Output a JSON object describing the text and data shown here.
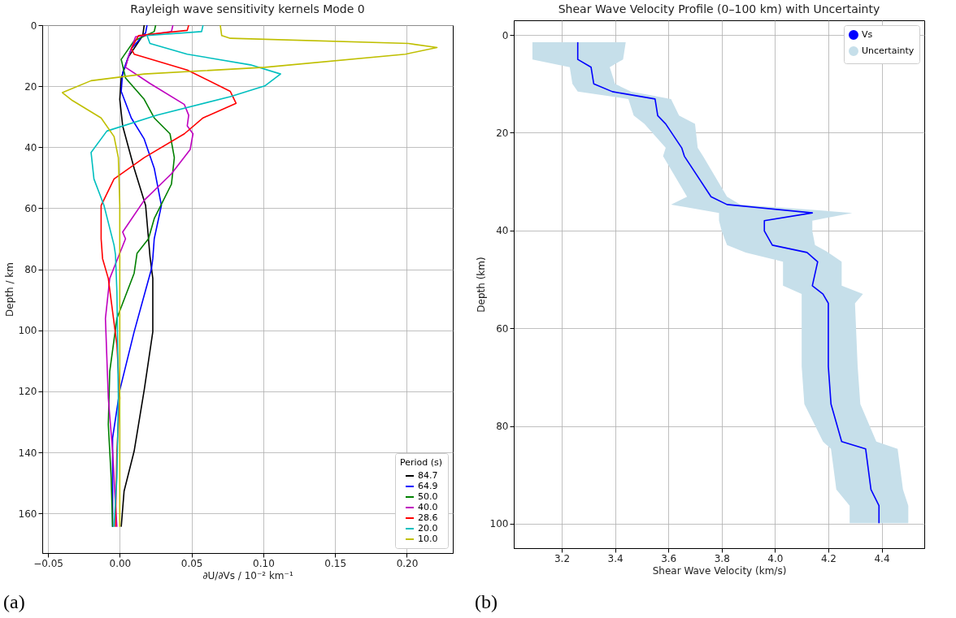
{
  "chart_data": [
    {
      "type": "line",
      "title": "Rayleigh wave sensitivity kernels Mode 0",
      "xlabel": "∂U/∂Vs / 10⁻² km⁻¹",
      "ylabel": "Depth / km",
      "orientation": "horizontal",
      "legend_title": "Period (s)",
      "legend": "bottom right",
      "grid": true,
      "xlim": [
        -0.054,
        0.232
      ],
      "xticks": [
        {
          "value": -0.05,
          "label": "−0.05"
        },
        {
          "value": 0,
          "label": "0.00"
        },
        {
          "value": 0.05,
          "label": "0.05"
        },
        {
          "value": 0.1,
          "label": "0.10"
        },
        {
          "value": 0.15,
          "label": "0.15"
        },
        {
          "value": 0.2,
          "label": "0.20"
        }
      ],
      "ylim": [
        173,
        0
      ],
      "yticks": [
        0,
        20,
        40,
        60,
        80,
        100,
        120,
        140,
        160
      ],
      "annotations": [
        "(a)"
      ],
      "series": [
        {
          "name": "84.7",
          "color": "#000000",
          "x": [
            0,
            3.4,
            10.4,
            17.3,
            24.3,
            33,
            46.9,
            59.1,
            70,
            75.6,
            83,
            100.5,
            119.6,
            139.6,
            152.7,
            164.4
          ],
          "values": [
            0.017,
            0.016,
            0.006,
            0.001,
            0.0,
            0.002,
            0.01,
            0.018,
            0.02,
            0.021,
            0.023,
            0.023,
            0.017,
            0.01,
            0.003,
            0.001
          ]
        },
        {
          "name": "64.9",
          "color": "#0000ff",
          "x": [
            0,
            2.5,
            7.7,
            15.6,
            21.7,
            30.4,
            37.3,
            46.9,
            59.1,
            70,
            76.5,
            80,
            100.5,
            119.6,
            135.3,
            157,
            164.4
          ],
          "values": [
            0.019,
            0.018,
            0.008,
            0.002,
            0.001,
            0.008,
            0.017,
            0.024,
            0.029,
            0.024,
            0.023,
            0.022,
            0.01,
            0.0,
            -0.005,
            -0.005,
            -0.005
          ]
        },
        {
          "name": "50.0",
          "color": "#008000",
          "x": [
            0,
            2.1,
            5.1,
            11.2,
            17.3,
            24.3,
            30.4,
            35.6,
            43.4,
            52.1,
            63.4,
            70,
            74.8,
            81.3,
            96.1,
            113.5,
            130.9,
            148.3,
            164.4
          ],
          "values": [
            0.025,
            0.024,
            0.01,
            0.001,
            0.004,
            0.017,
            0.024,
            0.035,
            0.038,
            0.036,
            0.024,
            0.02,
            0.012,
            0.01,
            -0.002,
            -0.007,
            -0.008,
            -0.006,
            -0.005
          ]
        },
        {
          "name": "40.0",
          "color": "#bf00bf",
          "x": [
            0,
            2.1,
            3.8,
            10.4,
            13.8,
            19.1,
            26,
            29.5,
            33,
            35.6,
            40.8,
            48.7,
            57.4,
            67.8,
            70,
            83,
            96.1,
            122.2,
            139.6,
            157,
            164.4
          ],
          "values": [
            0.037,
            0.036,
            0.011,
            0.006,
            0.004,
            0.021,
            0.045,
            0.048,
            0.047,
            0.051,
            0.049,
            0.036,
            0.017,
            0.002,
            0.004,
            -0.007,
            -0.01,
            -0.008,
            -0.005,
            -0.003,
            -0.002
          ]
        },
        {
          "name": "28.6",
          "color": "#ff0000",
          "x": [
            0,
            1.7,
            3.4,
            7.7,
            9.5,
            14.7,
            21.7,
            25.6,
            30.4,
            35.6,
            43.4,
            50.4,
            59.1,
            70,
            76.5,
            83,
            104.8,
            122.2,
            139.6,
            164.4
          ],
          "values": [
            0.048,
            0.047,
            0.013,
            0.008,
            0.01,
            0.047,
            0.077,
            0.081,
            0.058,
            0.045,
            0.017,
            -0.004,
            -0.013,
            -0.013,
            -0.012,
            -0.008,
            -0.002,
            0.0,
            -0.002,
            -0.003
          ]
        },
        {
          "name": "20.0",
          "color": "#00bfbf",
          "x": [
            0,
            2.1,
            3.4,
            6,
            9.5,
            13,
            16,
            19.9,
            23.4,
            29.5,
            34.7,
            41.7,
            50.4,
            59.1,
            72.1,
            75.2,
            87.4,
            122.2,
            148.3,
            164.4
          ],
          "values": [
            0.058,
            0.057,
            0.019,
            0.021,
            0.047,
            0.091,
            0.112,
            0.101,
            0.077,
            0.026,
            -0.009,
            -0.02,
            -0.018,
            -0.011,
            -0.004,
            -0.003,
            -0.002,
            -0.001,
            -0.002,
            -0.004
          ]
        },
        {
          "name": "10.0",
          "color": "#bfbf00",
          "x": [
            0,
            3.4,
            4.3,
            6,
            7.3,
            9.5,
            13.8,
            16,
            18.2,
            22.1,
            24.7,
            30.4,
            36.5,
            43.4,
            59,
            164.4
          ],
          "values": [
            0.07,
            0.071,
            0.077,
            0.201,
            0.221,
            0.199,
            0.101,
            0.017,
            -0.02,
            -0.04,
            -0.033,
            -0.013,
            -0.004,
            -0.001,
            0.0,
            0.0
          ]
        }
      ]
    },
    {
      "type": "line",
      "title": "Shear Wave Velocity Profile (0–100 km) with Uncertainty",
      "xlabel": "Shear Wave Velocity (km/s)",
      "ylabel": "Depth (km)",
      "orientation": "horizontal",
      "legend": "top right",
      "grid": true,
      "xlim": [
        3.02,
        4.56
      ],
      "xticks": [
        3.2,
        3.4,
        3.6,
        3.8,
        {
          "value": 4,
          "label": "4.0"
        },
        4.2,
        4.4
      ],
      "ylim": [
        105,
        -3
      ],
      "yticks": [
        0,
        20,
        40,
        60,
        80,
        100
      ],
      "annotations": [
        "(b)"
      ],
      "series": [
        {
          "name": "Vs",
          "color": "#0000ff",
          "x": [
            1.5,
            5,
            6.6,
            10,
            11.6,
            13.1,
            16.5,
            18.2,
            23.1,
            24.8,
            33.1,
            34.7,
            36.4,
            38,
            40.1,
            43,
            44.5,
            46.4,
            51.3,
            53,
            54.9,
            67.8,
            75.5,
            83.2,
            84.7,
            93,
            96.3,
            99.9
          ],
          "values": [
            3.26,
            3.26,
            3.31,
            3.32,
            3.39,
            3.55,
            3.56,
            3.59,
            3.65,
            3.66,
            3.76,
            3.82,
            4.14,
            3.96,
            3.96,
            3.99,
            4.12,
            4.16,
            4.14,
            4.18,
            4.2,
            4.2,
            4.21,
            4.25,
            4.34,
            4.36,
            4.39,
            4.39
          ],
          "upper": [
            3.44,
            3.43,
            3.38,
            3.4,
            3.46,
            3.61,
            3.64,
            3.7,
            3.71,
            3.73,
            3.82,
            3.87,
            4.29,
            4.14,
            4.14,
            4.15,
            4.2,
            4.25,
            4.25,
            4.33,
            4.3,
            4.31,
            4.32,
            4.38,
            4.46,
            4.48,
            4.5,
            4.5
          ],
          "lower": [
            3.09,
            3.09,
            3.23,
            3.24,
            3.26,
            3.45,
            3.47,
            3.51,
            3.59,
            3.58,
            3.67,
            3.61,
            3.79,
            3.79,
            3.8,
            3.82,
            3.89,
            4.03,
            4.03,
            4.1,
            4.1,
            4.1,
            4.11,
            4.18,
            4.21,
            4.23,
            4.28,
            4.28
          ]
        },
        {
          "name": "Uncertainty",
          "type": "area",
          "color": "#c6dfea"
        }
      ]
    }
  ]
}
